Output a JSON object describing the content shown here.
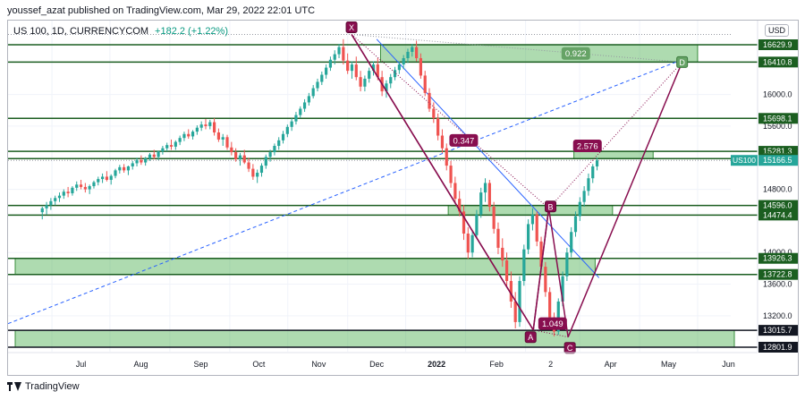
{
  "header": {
    "publisher": "youssef_azat published on TradingView.com, Mar 29, 2022 22:01 UTC"
  },
  "legend": {
    "symbol": "US 100, 1D, CURRENCYCOM",
    "change": "+182.2 (+1.22%)"
  },
  "currency": "USD",
  "footer": {
    "brand": "TradingView"
  },
  "chart_data": {
    "type": "candlestick",
    "x_ticks": [
      "Jul",
      "Aug",
      "Sep",
      "Oct",
      "Nov",
      "Dec",
      "2022",
      "Feb",
      "2",
      "Apr",
      "May",
      "Jun"
    ],
    "y_axis_labels": [
      13200.0,
      13600.0,
      14000.0,
      14800.0,
      15600.0,
      16000.0
    ],
    "levels": [
      16629.9,
      16410.8,
      15698.1,
      15281.3,
      15188.9,
      14596.0,
      14474.4,
      13926.3,
      13722.8,
      13015.7,
      12801.9
    ],
    "last_price": {
      "label": "US100",
      "value": 15166.5
    },
    "pattern_points": {
      "X": {
        "date": "2021-11-22",
        "price": 16760
      },
      "A": {
        "date": "2022-02-24",
        "price": 13020
      },
      "B": {
        "date": "2022-03-04",
        "price": 14560
      },
      "C": {
        "date": "2022-03-14",
        "price": 12930
      },
      "D": {
        "date": "2022-05-12",
        "price": 16410
      }
    },
    "ratios": [
      "0.347",
      "2.576",
      "1.049",
      "0.922"
    ],
    "zones": [
      {
        "from": 16410.8,
        "to": 16629.9
      },
      {
        "from": 15188.9,
        "to": 15281.3
      },
      {
        "from": 14474.4,
        "to": 14596.0
      },
      {
        "from": 13722.8,
        "to": 13926.3
      },
      {
        "from": 12801.9,
        "to": 13015.7
      }
    ],
    "ohlc": [
      [
        14510,
        14580,
        14420,
        14560
      ],
      [
        14560,
        14640,
        14480,
        14600
      ],
      [
        14600,
        14690,
        14540,
        14650
      ],
      [
        14650,
        14720,
        14600,
        14690
      ],
      [
        14690,
        14760,
        14640,
        14720
      ],
      [
        14720,
        14800,
        14680,
        14770
      ],
      [
        14770,
        14830,
        14700,
        14750
      ],
      [
        14750,
        14840,
        14720,
        14820
      ],
      [
        14820,
        14900,
        14780,
        14860
      ],
      [
        14860,
        14920,
        14800,
        14830
      ],
      [
        14830,
        14880,
        14760,
        14800
      ],
      [
        14800,
        14860,
        14740,
        14840
      ],
      [
        14840,
        14910,
        14810,
        14890
      ],
      [
        14890,
        14960,
        14850,
        14930
      ],
      [
        14930,
        15000,
        14880,
        14960
      ],
      [
        14960,
        15030,
        14900,
        14920
      ],
      [
        14920,
        14990,
        14860,
        14970
      ],
      [
        14970,
        15060,
        14940,
        15040
      ],
      [
        15040,
        15110,
        15000,
        15080
      ],
      [
        15080,
        15120,
        15010,
        15040
      ],
      [
        15040,
        15100,
        14980,
        15090
      ],
      [
        15090,
        15160,
        15050,
        15130
      ],
      [
        15130,
        15200,
        15090,
        15170
      ],
      [
        15170,
        15230,
        15110,
        15140
      ],
      [
        15140,
        15210,
        15100,
        15190
      ],
      [
        15190,
        15260,
        15160,
        15240
      ],
      [
        15240,
        15300,
        15180,
        15210
      ],
      [
        15210,
        15290,
        15170,
        15280
      ],
      [
        15280,
        15350,
        15240,
        15320
      ],
      [
        15320,
        15390,
        15280,
        15360
      ],
      [
        15360,
        15430,
        15300,
        15340
      ],
      [
        15340,
        15420,
        15300,
        15400
      ],
      [
        15400,
        15480,
        15360,
        15450
      ],
      [
        15450,
        15530,
        15410,
        15500
      ],
      [
        15500,
        15560,
        15440,
        15470
      ],
      [
        15470,
        15550,
        15430,
        15530
      ],
      [
        15530,
        15610,
        15490,
        15580
      ],
      [
        15580,
        15660,
        15540,
        15620
      ],
      [
        15620,
        15690,
        15560,
        15600
      ],
      [
        15600,
        15680,
        15560,
        15650
      ],
      [
        15650,
        15700,
        15480,
        15520
      ],
      [
        15520,
        15570,
        15400,
        15430
      ],
      [
        15430,
        15500,
        15350,
        15460
      ],
      [
        15460,
        15490,
        15300,
        15330
      ],
      [
        15330,
        15400,
        15230,
        15270
      ],
      [
        15270,
        15320,
        15150,
        15180
      ],
      [
        15180,
        15260,
        15100,
        15230
      ],
      [
        15230,
        15300,
        15120,
        15140
      ],
      [
        15140,
        15200,
        15020,
        15060
      ],
      [
        15060,
        15120,
        14920,
        14960
      ],
      [
        14960,
        15050,
        14880,
        15010
      ],
      [
        15010,
        15130,
        14960,
        15100
      ],
      [
        15100,
        15240,
        15060,
        15210
      ],
      [
        15210,
        15300,
        15150,
        15270
      ],
      [
        15270,
        15380,
        15230,
        15350
      ],
      [
        15350,
        15460,
        15300,
        15420
      ],
      [
        15420,
        15540,
        15380,
        15500
      ],
      [
        15500,
        15620,
        15460,
        15590
      ],
      [
        15590,
        15700,
        15540,
        15660
      ],
      [
        15660,
        15780,
        15620,
        15740
      ],
      [
        15740,
        15850,
        15700,
        15820
      ],
      [
        15820,
        15940,
        15780,
        15900
      ],
      [
        15900,
        16020,
        15860,
        15980
      ],
      [
        15980,
        16120,
        15950,
        16080
      ],
      [
        16080,
        16200,
        16040,
        16160
      ],
      [
        16160,
        16290,
        16120,
        16250
      ],
      [
        16250,
        16380,
        16200,
        16340
      ],
      [
        16340,
        16480,
        16300,
        16440
      ],
      [
        16440,
        16560,
        16380,
        16510
      ],
      [
        16510,
        16640,
        16460,
        16600
      ],
      [
        16600,
        16700,
        16380,
        16430
      ],
      [
        16430,
        16520,
        16260,
        16300
      ],
      [
        16300,
        16420,
        16200,
        16380
      ],
      [
        16380,
        16480,
        16180,
        16220
      ],
      [
        16220,
        16300,
        16040,
        16100
      ],
      [
        16100,
        16240,
        16040,
        16200
      ],
      [
        16200,
        16340,
        16150,
        16300
      ],
      [
        16300,
        16420,
        16240,
        16380
      ],
      [
        16380,
        16460,
        16180,
        16220
      ],
      [
        16220,
        16300,
        15980,
        16040
      ],
      [
        16040,
        16180,
        15960,
        16140
      ],
      [
        16140,
        16260,
        16080,
        16220
      ],
      [
        16220,
        16350,
        16180,
        16310
      ],
      [
        16310,
        16420,
        16260,
        16380
      ],
      [
        16380,
        16500,
        16320,
        16460
      ],
      [
        16460,
        16580,
        16400,
        16540
      ],
      [
        16540,
        16640,
        16480,
        16600
      ],
      [
        16600,
        16680,
        16420,
        16460
      ],
      [
        16460,
        16520,
        16200,
        16240
      ],
      [
        16240,
        16300,
        15980,
        16020
      ],
      [
        16020,
        16080,
        15780,
        15820
      ],
      [
        15820,
        15900,
        15640,
        15700
      ],
      [
        15700,
        15760,
        15420,
        15480
      ],
      [
        15480,
        15560,
        15260,
        15320
      ],
      [
        15320,
        15380,
        15040,
        15100
      ],
      [
        15100,
        15160,
        14820,
        14880
      ],
      [
        14880,
        14960,
        14620,
        14680
      ],
      [
        14680,
        14780,
        14460,
        14520
      ],
      [
        14520,
        14600,
        14160,
        14240
      ],
      [
        14240,
        14320,
        13920,
        14000
      ],
      [
        14000,
        14280,
        13940,
        14220
      ],
      [
        14220,
        14540,
        14180,
        14480
      ],
      [
        14480,
        14820,
        14440,
        14760
      ],
      [
        14760,
        14940,
        14640,
        14880
      ],
      [
        14880,
        14920,
        14520,
        14580
      ],
      [
        14580,
        14640,
        14240,
        14300
      ],
      [
        14300,
        14380,
        13980,
        14060
      ],
      [
        14060,
        14180,
        13820,
        13900
      ],
      [
        13900,
        14000,
        13560,
        13640
      ],
      [
        13640,
        13760,
        13300,
        13380
      ],
      [
        13380,
        13500,
        13040,
        13120
      ],
      [
        13120,
        13700,
        13060,
        13640
      ],
      [
        13640,
        14100,
        13580,
        14040
      ],
      [
        14040,
        14420,
        13980,
        14360
      ],
      [
        14360,
        14560,
        14280,
        14480
      ],
      [
        14480,
        14520,
        14080,
        14140
      ],
      [
        14140,
        14200,
        13760,
        13820
      ],
      [
        13820,
        13880,
        13440,
        13500
      ],
      [
        13500,
        13560,
        13120,
        13180
      ],
      [
        13180,
        13240,
        12940,
        13000
      ],
      [
        13000,
        13420,
        12960,
        13380
      ],
      [
        13380,
        13760,
        13320,
        13700
      ],
      [
        13700,
        14060,
        13640,
        14000
      ],
      [
        14000,
        14320,
        13940,
        14260
      ],
      [
        14260,
        14520,
        14200,
        14460
      ],
      [
        14460,
        14700,
        14400,
        14640
      ],
      [
        14640,
        14840,
        14580,
        14780
      ],
      [
        14780,
        15000,
        14720,
        14940
      ],
      [
        14940,
        15120,
        14880,
        15090
      ],
      [
        15090,
        15200,
        15040,
        15166.5
      ]
    ]
  }
}
